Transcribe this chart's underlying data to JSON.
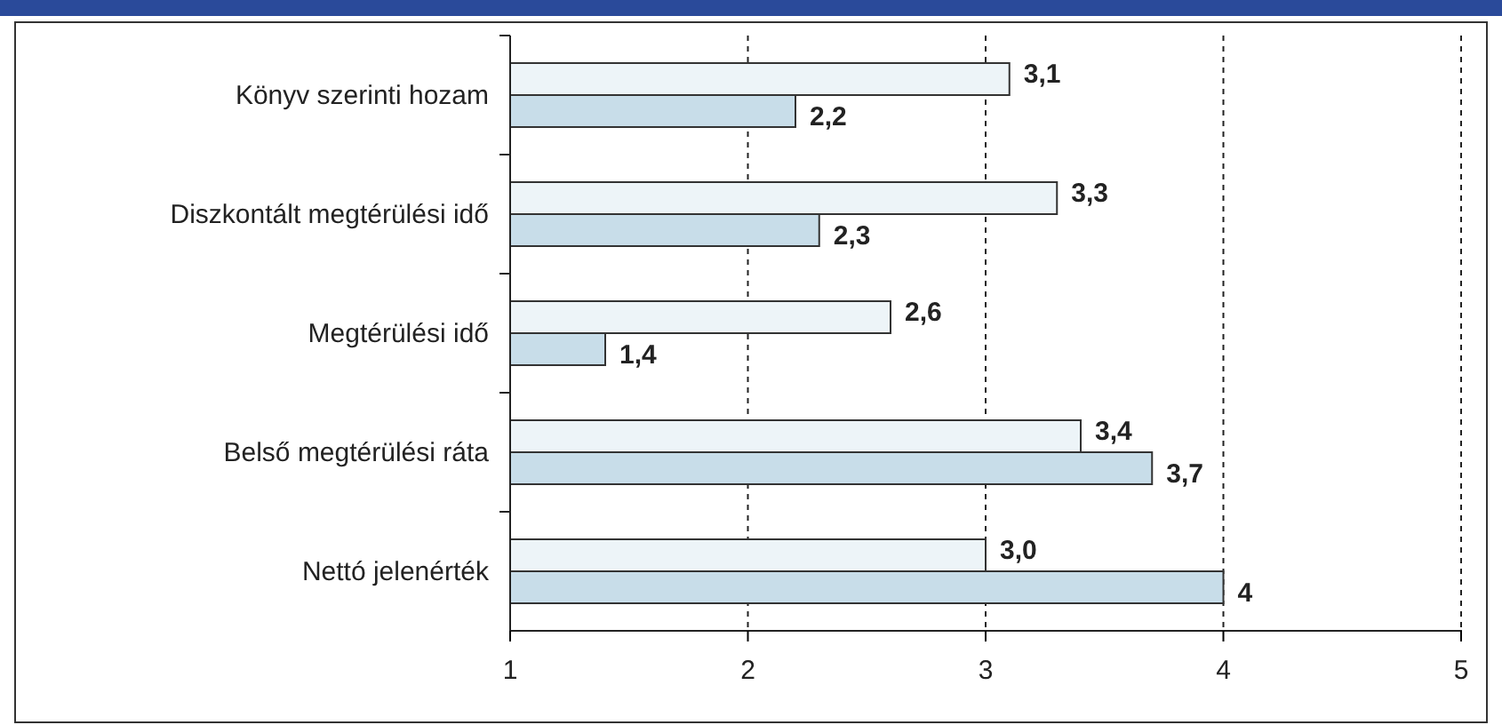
{
  "chart_data": {
    "type": "bar",
    "orientation": "horizontal",
    "categories": [
      "Könyv szerinti hozam",
      "Diszkontált megtérülési idő",
      "Megtérülési idő",
      "Belső megtérülési ráta",
      "Nettó jelenérték"
    ],
    "series": [
      {
        "color": "#edf4f8",
        "values": [
          3.1,
          3.3,
          2.6,
          3.4,
          3.0
        ],
        "value_labels": [
          "3,1",
          "3,3",
          "2,6",
          "3,4",
          "3,0"
        ]
      },
      {
        "color": "#c8dde9",
        "values": [
          2.2,
          2.3,
          1.4,
          3.7,
          4
        ],
        "value_labels": [
          "2,2",
          "2,3",
          "1,4",
          "3,7",
          "4"
        ]
      }
    ],
    "xlim": [
      1,
      5
    ],
    "xticks": [
      1,
      2,
      3,
      4,
      5
    ],
    "grid": "x"
  }
}
